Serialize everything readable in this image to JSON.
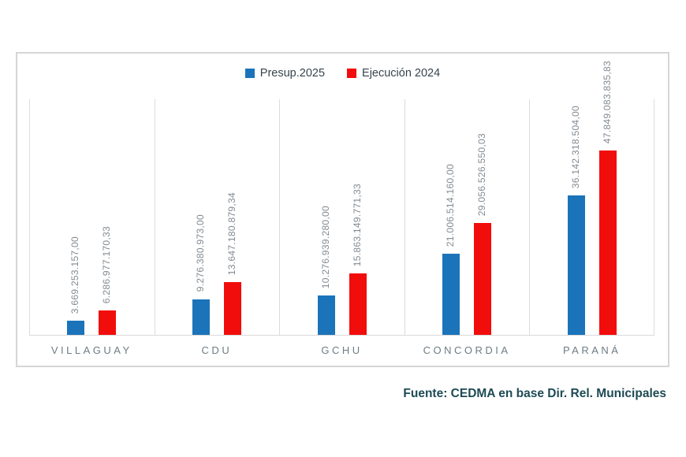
{
  "chart_data": {
    "type": "bar",
    "title": "",
    "categories": [
      "VILLAGUAY",
      "CDU",
      "GCHU",
      "CONCORDIA",
      "PARANÁ"
    ],
    "series": [
      {
        "name": "Presup.2025",
        "color": "#1b74ba",
        "values": [
          3669253157.0,
          9276380973.0,
          10276939280.0,
          21006514160.0,
          36142318504.0
        ],
        "labels": [
          "3.669.253.157,00",
          "9.276.380.973,00",
          "10.276.939.280,00",
          "21.006.514.160,00",
          "36.142.318.504,00"
        ]
      },
      {
        "name": "Ejecución 2024",
        "color": "#f20d0d",
        "values": [
          6286977170.33,
          13647180879.34,
          15863149771.33,
          29056526550.03,
          47849083835.83
        ],
        "labels": [
          "6.286.977.170,33",
          "13.647.180.879,34",
          "15.863.149.771,33",
          "29.056.526.550,03",
          "47.849.083.835,83"
        ]
      }
    ],
    "xlabel": "",
    "ylabel": "",
    "ylim": [
      0,
      50000000000
    ],
    "y_axis_visible": false,
    "grid": "vertical-category-separators",
    "gridline_color": "#dcdcdc",
    "legend_position": "top-center",
    "value_label_rotation": 90,
    "value_label_color": "#828a91",
    "category_label_color": "#6d7c84"
  },
  "footer": {
    "source": "Fuente: CEDMA en base Dir. Rel. Municipales"
  },
  "frame": {
    "border_color": "#d6d6d6",
    "background": "#ffffff"
  }
}
